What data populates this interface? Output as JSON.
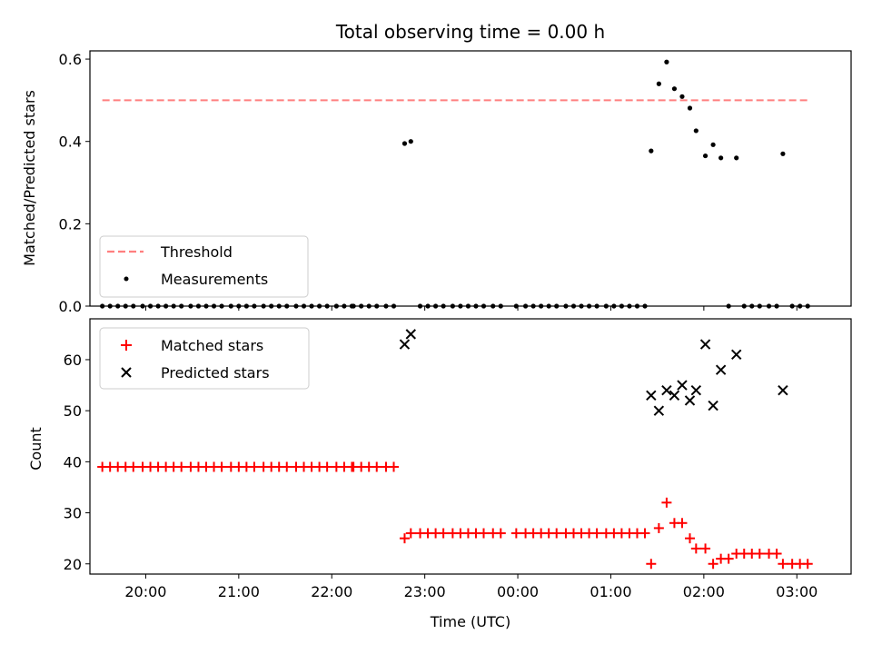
{
  "chart_data": [
    {
      "type": "scatter",
      "title": "Total observing time = 0.00 h",
      "ylabel": "Matched/Predicted stars",
      "xlim": [
        "19:24",
        "03:35"
      ],
      "ylim": [
        0,
        0.62
      ],
      "yticks": [
        0,
        0.2,
        0.4,
        0.6
      ],
      "ytick_labels": [
        "0.0",
        "0.2",
        "0.4",
        "0.6"
      ],
      "grid": false,
      "legend": {
        "placement": "lower-left",
        "entries": [
          "Threshold",
          "Measurements"
        ]
      },
      "threshold": {
        "name": "Threshold",
        "value": 0.5,
        "x": [
          "19:32",
          "03:07"
        ],
        "color": "#ff7f7f",
        "style": "dashed"
      },
      "series": [
        {
          "name": "Measurements",
          "color": "#000000",
          "marker": "dot",
          "points": [
            [
              "19:32",
              0
            ],
            [
              "19:37",
              0
            ],
            [
              "19:42",
              0
            ],
            [
              "19:47",
              0
            ],
            [
              "19:52",
              0
            ],
            [
              "19:58",
              0
            ],
            [
              "20:03",
              0
            ],
            [
              "20:08",
              0
            ],
            [
              "20:13",
              0
            ],
            [
              "20:18",
              0
            ],
            [
              "20:23",
              0
            ],
            [
              "20:29",
              0
            ],
            [
              "20:34",
              0
            ],
            [
              "20:39",
              0
            ],
            [
              "20:44",
              0
            ],
            [
              "20:49",
              0
            ],
            [
              "20:55",
              0
            ],
            [
              "21:00",
              0
            ],
            [
              "21:05",
              0
            ],
            [
              "21:10",
              0
            ],
            [
              "21:16",
              0
            ],
            [
              "21:21",
              0
            ],
            [
              "21:26",
              0
            ],
            [
              "21:31",
              0
            ],
            [
              "21:37",
              0
            ],
            [
              "21:42",
              0
            ],
            [
              "21:47",
              0
            ],
            [
              "21:52",
              0
            ],
            [
              "21:57",
              0
            ],
            [
              "22:03",
              0
            ],
            [
              "22:08",
              0
            ],
            [
              "22:13",
              0
            ],
            [
              "22:14",
              0
            ],
            [
              "22:19",
              0
            ],
            [
              "22:24",
              0
            ],
            [
              "22:29",
              0
            ],
            [
              "22:35",
              0
            ],
            [
              "22:40",
              0
            ],
            [
              "22:47",
              0.395
            ],
            [
              "22:51",
              0.4
            ],
            [
              "22:57",
              0
            ],
            [
              "23:02",
              0
            ],
            [
              "23:07",
              0
            ],
            [
              "23:12",
              0
            ],
            [
              "23:18",
              0
            ],
            [
              "23:23",
              0
            ],
            [
              "23:28",
              0
            ],
            [
              "23:33",
              0
            ],
            [
              "23:38",
              0
            ],
            [
              "23:44",
              0
            ],
            [
              "23:49",
              0
            ],
            [
              "23:59",
              0
            ],
            [
              "00:05",
              0
            ],
            [
              "00:10",
              0
            ],
            [
              "00:15",
              0
            ],
            [
              "00:20",
              0
            ],
            [
              "00:25",
              0
            ],
            [
              "00:31",
              0
            ],
            [
              "00:36",
              0
            ],
            [
              "00:41",
              0
            ],
            [
              "00:46",
              0
            ],
            [
              "00:51",
              0
            ],
            [
              "00:57",
              0
            ],
            [
              "01:02",
              0
            ],
            [
              "01:07",
              0
            ],
            [
              "01:12",
              0
            ],
            [
              "01:17",
              0
            ],
            [
              "01:22",
              0
            ],
            [
              "01:26",
              0.377
            ],
            [
              "01:31",
              0.54
            ],
            [
              "01:36",
              0.593
            ],
            [
              "01:41",
              0.528
            ],
            [
              "01:46",
              0.509
            ],
            [
              "01:51",
              0.481
            ],
            [
              "01:55",
              0.426
            ],
            [
              "02:01",
              0.365
            ],
            [
              "02:06",
              0.392
            ],
            [
              "02:11",
              0.36
            ],
            [
              "02:21",
              0.36
            ],
            [
              "02:16",
              0
            ],
            [
              "02:26",
              0
            ],
            [
              "02:31",
              0
            ],
            [
              "02:36",
              0
            ],
            [
              "02:42",
              0
            ],
            [
              "02:47",
              0
            ],
            [
              "02:51",
              0.37
            ],
            [
              "02:57",
              0
            ],
            [
              "03:02",
              0
            ],
            [
              "03:07",
              0
            ]
          ]
        }
      ]
    },
    {
      "type": "scatter",
      "xlabel": "Time (UTC)",
      "ylabel": "Count",
      "xlim": [
        "19:24",
        "03:35"
      ],
      "xticks": [
        "20:00",
        "21:00",
        "22:00",
        "23:00",
        "00:00",
        "01:00",
        "02:00",
        "03:00"
      ],
      "ylim": [
        18,
        68
      ],
      "yticks": [
        20,
        30,
        40,
        50,
        60
      ],
      "grid": false,
      "legend": {
        "placement": "top-left",
        "entries": [
          "Matched stars",
          "Predicted stars"
        ]
      },
      "series": [
        {
          "name": "Matched stars",
          "color": "#ff0000",
          "marker": "plus",
          "points": [
            [
              "19:32",
              39
            ],
            [
              "19:37",
              39
            ],
            [
              "19:42",
              39
            ],
            [
              "19:47",
              39
            ],
            [
              "19:52",
              39
            ],
            [
              "19:58",
              39
            ],
            [
              "20:03",
              39
            ],
            [
              "20:08",
              39
            ],
            [
              "20:13",
              39
            ],
            [
              "20:18",
              39
            ],
            [
              "20:23",
              39
            ],
            [
              "20:29",
              39
            ],
            [
              "20:34",
              39
            ],
            [
              "20:39",
              39
            ],
            [
              "20:44",
              39
            ],
            [
              "20:49",
              39
            ],
            [
              "20:55",
              39
            ],
            [
              "21:00",
              39
            ],
            [
              "21:05",
              39
            ],
            [
              "21:10",
              39
            ],
            [
              "21:16",
              39
            ],
            [
              "21:21",
              39
            ],
            [
              "21:26",
              39
            ],
            [
              "21:31",
              39
            ],
            [
              "21:37",
              39
            ],
            [
              "21:42",
              39
            ],
            [
              "21:47",
              39
            ],
            [
              "21:52",
              39
            ],
            [
              "21:57",
              39
            ],
            [
              "22:03",
              39
            ],
            [
              "22:08",
              39
            ],
            [
              "22:13",
              39
            ],
            [
              "22:14",
              39
            ],
            [
              "22:19",
              39
            ],
            [
              "22:24",
              39
            ],
            [
              "22:29",
              39
            ],
            [
              "22:35",
              39
            ],
            [
              "22:40",
              39
            ],
            [
              "22:47",
              25
            ],
            [
              "22:51",
              26
            ],
            [
              "22:57",
              26
            ],
            [
              "23:02",
              26
            ],
            [
              "23:07",
              26
            ],
            [
              "23:12",
              26
            ],
            [
              "23:18",
              26
            ],
            [
              "23:23",
              26
            ],
            [
              "23:28",
              26
            ],
            [
              "23:33",
              26
            ],
            [
              "23:38",
              26
            ],
            [
              "23:44",
              26
            ],
            [
              "23:49",
              26
            ],
            [
              "23:59",
              26
            ],
            [
              "00:05",
              26
            ],
            [
              "00:10",
              26
            ],
            [
              "00:15",
              26
            ],
            [
              "00:20",
              26
            ],
            [
              "00:25",
              26
            ],
            [
              "00:31",
              26
            ],
            [
              "00:36",
              26
            ],
            [
              "00:41",
              26
            ],
            [
              "00:46",
              26
            ],
            [
              "00:51",
              26
            ],
            [
              "00:57",
              26
            ],
            [
              "01:02",
              26
            ],
            [
              "01:07",
              26
            ],
            [
              "01:12",
              26
            ],
            [
              "01:17",
              26
            ],
            [
              "01:22",
              26
            ],
            [
              "01:26",
              20
            ],
            [
              "01:31",
              27
            ],
            [
              "01:36",
              32
            ],
            [
              "01:41",
              28
            ],
            [
              "01:46",
              28
            ],
            [
              "01:51",
              25
            ],
            [
              "01:55",
              23
            ],
            [
              "02:01",
              23
            ],
            [
              "02:06",
              20
            ],
            [
              "02:11",
              21
            ],
            [
              "02:16",
              21
            ],
            [
              "02:21",
              22
            ],
            [
              "02:26",
              22
            ],
            [
              "02:31",
              22
            ],
            [
              "02:36",
              22
            ],
            [
              "02:42",
              22
            ],
            [
              "02:47",
              22
            ],
            [
              "02:51",
              20
            ],
            [
              "02:57",
              20
            ],
            [
              "03:02",
              20
            ],
            [
              "03:07",
              20
            ]
          ]
        },
        {
          "name": "Predicted stars",
          "color": "#000000",
          "marker": "x",
          "points": [
            [
              "22:47",
              63
            ],
            [
              "22:51",
              65
            ],
            [
              "01:26",
              53
            ],
            [
              "01:31",
              50
            ],
            [
              "01:36",
              54
            ],
            [
              "01:41",
              53
            ],
            [
              "01:46",
              55
            ],
            [
              "01:51",
              52
            ],
            [
              "01:55",
              54
            ],
            [
              "02:01",
              63
            ],
            [
              "02:06",
              51
            ],
            [
              "02:11",
              58
            ],
            [
              "02:21",
              61
            ],
            [
              "02:51",
              54
            ]
          ]
        }
      ]
    }
  ]
}
